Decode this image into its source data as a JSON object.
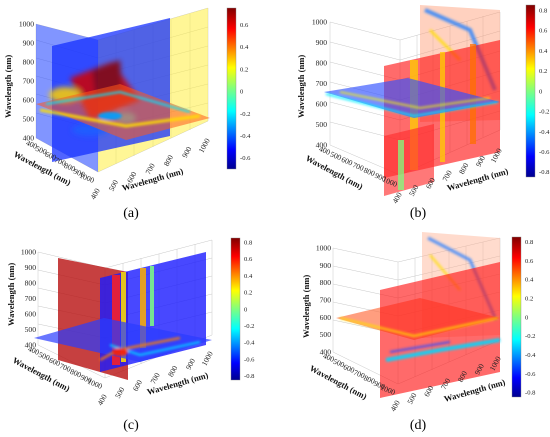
{
  "figure": {
    "panels": [
      {
        "caption": "(a)",
        "colorbar_ticks": [
          "0.6",
          "0.4",
          "0.2",
          "0",
          "-0.2",
          "-0.4",
          "-0.6"
        ],
        "vmin": -0.7,
        "vmax": 0.75
      },
      {
        "caption": "(b)",
        "colorbar_ticks": [
          "0.8",
          "0.6",
          "0.4",
          "0.2",
          "0",
          "-0.2",
          "-0.4",
          "-0.6",
          "-0.8"
        ],
        "vmin": -0.85,
        "vmax": 0.85
      },
      {
        "caption": "(c)",
        "colorbar_ticks": [
          "0.8",
          "0.6",
          "0.4",
          "0.2",
          "0",
          "-0.2",
          "-0.4",
          "-0.6",
          "-0.8"
        ],
        "vmin": -0.85,
        "vmax": 0.85
      },
      {
        "caption": "(d)",
        "colorbar_ticks": [
          "0.8",
          "0.6",
          "0.4",
          "0.2",
          "0",
          "-0.2",
          "-0.4",
          "-0.6",
          "-0.8"
        ],
        "vmin": -0.85,
        "vmax": 0.85
      }
    ]
  },
  "chart_data": [
    {
      "type": "heatmap",
      "title": "",
      "caption": "(a)",
      "xlabel": "Wavelength (nm)",
      "ylabel": "Wavelength (nm)",
      "zlabel": "Wavelength (nm)",
      "x_ticks": [
        "400",
        "500",
        "600",
        "700",
        "800",
        "900",
        "1000"
      ],
      "y_ticks": [
        "400",
        "500",
        "600",
        "700",
        "800",
        "900",
        "1000"
      ],
      "z_ticks": [
        "400",
        "500",
        "600",
        "700",
        "800",
        "900",
        "1000"
      ],
      "xlim": [
        400,
        1000
      ],
      "ylim": [
        400,
        1000
      ],
      "zlim": [
        400,
        1000
      ],
      "colorbar_range": [
        -0.7,
        0.75
      ],
      "colormap": "jet",
      "grid": true,
      "representation": "orthogonal slice planes of a 3D correlation volume"
    },
    {
      "type": "heatmap",
      "title": "",
      "caption": "(b)",
      "xlabel": "Wavelength (nm)",
      "ylabel": "Wavelength (nm)",
      "zlabel": "Wavelength (nm)",
      "x_ticks": [
        "400",
        "500",
        "600",
        "700",
        "800",
        "900",
        "1000"
      ],
      "y_ticks": [
        "400",
        "500",
        "600",
        "700",
        "800",
        "900",
        "1000"
      ],
      "z_ticks": [
        "400",
        "500",
        "600",
        "700",
        "800",
        "900",
        "1000"
      ],
      "xlim": [
        400,
        1000
      ],
      "ylim": [
        400,
        1000
      ],
      "zlim": [
        400,
        1000
      ],
      "colorbar_range": [
        -0.85,
        0.85
      ],
      "colormap": "jet",
      "grid": true,
      "representation": "orthogonal slice planes of a 3D correlation volume"
    },
    {
      "type": "heatmap",
      "title": "",
      "caption": "(c)",
      "xlabel": "Wavelength (nm)",
      "ylabel": "Wavelength (nm)",
      "zlabel": "Wavelength (nm)",
      "x_ticks": [
        "400",
        "500",
        "600",
        "700",
        "800",
        "900",
        "1000"
      ],
      "y_ticks": [
        "400",
        "500",
        "600",
        "700",
        "800",
        "900",
        "1000"
      ],
      "z_ticks": [
        "400",
        "500",
        "600",
        "700",
        "800",
        "900",
        "1000"
      ],
      "xlim": [
        400,
        1000
      ],
      "ylim": [
        400,
        1000
      ],
      "zlim": [
        400,
        1000
      ],
      "colorbar_range": [
        -0.85,
        0.85
      ],
      "colormap": "jet",
      "grid": true,
      "representation": "orthogonal slice planes of a 3D correlation volume"
    },
    {
      "type": "heatmap",
      "title": "",
      "caption": "(d)",
      "xlabel": "Wavelength (nm)",
      "ylabel": "Wavelength (nm)",
      "zlabel": "Wavelength (nm)",
      "x_ticks": [
        "400",
        "500",
        "600",
        "700",
        "800",
        "900",
        "1000"
      ],
      "y_ticks": [
        "400",
        "500",
        "600",
        "700",
        "800",
        "900",
        "1000"
      ],
      "z_ticks": [
        "400",
        "500",
        "600",
        "700",
        "800",
        "900",
        "1000"
      ],
      "xlim": [
        400,
        1000
      ],
      "ylim": [
        400,
        1000
      ],
      "zlim": [
        400,
        1000
      ],
      "colorbar_range": [
        -0.85,
        0.85
      ],
      "colormap": "jet",
      "grid": true,
      "representation": "orthogonal slice planes of a 3D correlation volume"
    }
  ]
}
